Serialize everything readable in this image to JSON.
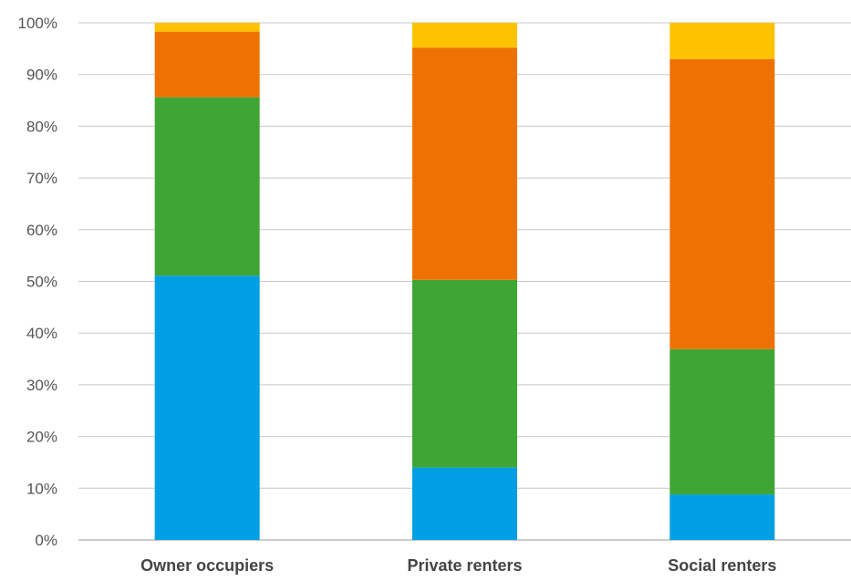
{
  "chart_data": {
    "type": "bar",
    "stacked": true,
    "percent_stacked": true,
    "categories": [
      "Owner occupiers",
      "Private renters",
      "Social renters"
    ],
    "series": [
      {
        "color": "#009fe3",
        "values": [
          51.1,
          14.0,
          8.8
        ]
      },
      {
        "color": "#3fa535",
        "values": [
          34.5,
          36.3,
          28.1
        ]
      },
      {
        "color": "#ee7203",
        "values": [
          12.7,
          44.9,
          56.1
        ]
      },
      {
        "color": "#fdc300",
        "values": [
          1.7,
          4.8,
          7.0
        ]
      }
    ],
    "y_ticks": [
      "0%",
      "10%",
      "20%",
      "30%",
      "40%",
      "50%",
      "60%",
      "70%",
      "80%",
      "90%",
      "100%"
    ],
    "ylim": [
      0,
      100
    ],
    "grid": true,
    "legend": "none",
    "title": "",
    "xlabel": "",
    "ylabel": ""
  }
}
